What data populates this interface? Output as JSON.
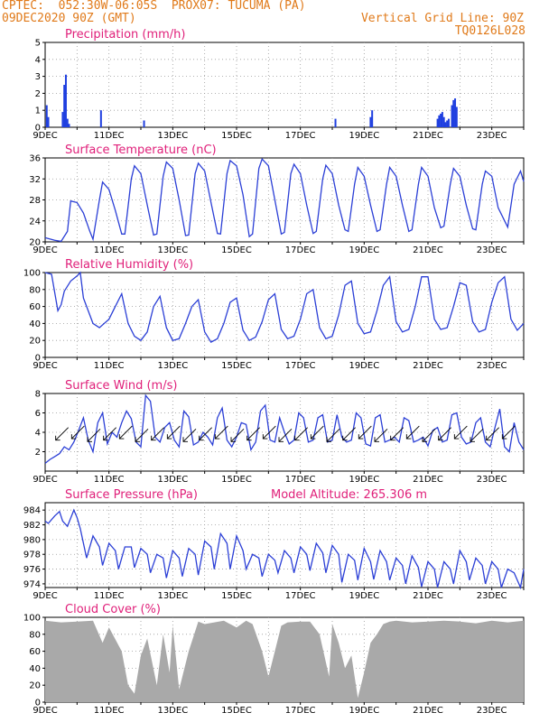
{
  "header": {
    "line1": "CPTEC:  052:30W-06:05S  PROX07: TUCUMA (PA)",
    "line2_left": "09DEC2020 90Z (GMT)",
    "line2_right": "Vertical Grid Line: 90Z",
    "line3_right": "TQ0126L028",
    "model_altitude": "Model Altitude: 265.306 m"
  },
  "colors": {
    "line": "#2b3fd6",
    "bar": "#1f3fe0",
    "cloud": "#a9a9a9",
    "title": "#e0207a",
    "header": "#e07a1a"
  },
  "x_ticks": [
    "9DEC",
    "11DEC",
    "13DEC",
    "15DEC",
    "17DEC",
    "19DEC",
    "21DEC",
    "23DEC"
  ],
  "chart_data": [
    {
      "type": "bar",
      "title": "Precipitation (mm/h)",
      "ylim": [
        0,
        5
      ],
      "yticks": [
        0,
        1,
        2,
        3,
        4,
        5
      ],
      "x_days": [
        0.05,
        0.1,
        0.55,
        0.6,
        0.65,
        0.7,
        0.75,
        1.75,
        3.1,
        9.1,
        10.2,
        10.25,
        12.3,
        12.35,
        12.4,
        12.45,
        12.5,
        12.55,
        12.6,
        12.65,
        12.75,
        12.8,
        12.85,
        12.9
      ],
      "values": [
        1.3,
        0.6,
        0.9,
        2.5,
        3.1,
        0.5,
        0.2,
        1.0,
        0.4,
        0.5,
        0.6,
        1.0,
        0.5,
        0.7,
        0.8,
        0.9,
        0.6,
        0.3,
        0.4,
        0.5,
        1.3,
        1.6,
        1.7,
        1.2
      ]
    },
    {
      "type": "line",
      "title": "Surface Temperature (nC)",
      "ylim": [
        20,
        36
      ],
      "yticks": [
        20,
        24,
        28,
        32,
        36
      ],
      "x_days": [
        0,
        0.3,
        0.5,
        0.7,
        0.8,
        1.0,
        1.2,
        1.4,
        1.5,
        1.7,
        1.8,
        2.0,
        2.2,
        2.4,
        2.5,
        2.7,
        2.8,
        3.0,
        3.2,
        3.4,
        3.5,
        3.7,
        3.8,
        4.0,
        4.2,
        4.4,
        4.5,
        4.7,
        4.8,
        5.0,
        5.2,
        5.4,
        5.5,
        5.7,
        5.8,
        6.0,
        6.2,
        6.4,
        6.5,
        6.7,
        6.8,
        7.0,
        7.2,
        7.4,
        7.5,
        7.7,
        7.8,
        8.0,
        8.2,
        8.4,
        8.5,
        8.7,
        8.8,
        9.0,
        9.2,
        9.4,
        9.5,
        9.7,
        9.8,
        10.0,
        10.2,
        10.4,
        10.5,
        10.7,
        10.8,
        11.0,
        11.2,
        11.4,
        11.5,
        11.7,
        11.8,
        12.0,
        12.2,
        12.4,
        12.5,
        12.7,
        12.8,
        13.0,
        13.2,
        13.4,
        13.5,
        13.7,
        13.8,
        14.0,
        14.2,
        14.5,
        14.7,
        14.9,
        15.0
      ],
      "values": [
        20.8,
        20.3,
        20.1,
        22,
        27.8,
        27.5,
        25.5,
        22,
        20.5,
        28,
        31.4,
        30,
        26,
        21.5,
        21.5,
        32,
        34.5,
        33,
        27,
        21.3,
        21.5,
        32.5,
        35.2,
        34,
        28,
        21.2,
        21.3,
        33,
        35,
        33.5,
        27.5,
        21.6,
        21.5,
        33,
        35.5,
        34.5,
        29,
        21,
        21.5,
        34,
        35.8,
        34.5,
        28,
        21.5,
        21.8,
        33,
        34.8,
        33,
        27,
        21.6,
        22,
        32,
        34.6,
        33,
        27,
        22.3,
        22,
        31,
        34.2,
        32.5,
        27,
        22,
        22.3,
        31,
        34.2,
        32.5,
        27,
        22,
        22.3,
        31,
        34.2,
        32.5,
        26.5,
        22.7,
        23,
        31,
        34,
        32.5,
        27,
        22.5,
        22.3,
        31,
        33.5,
        32.5,
        26.5,
        22.8,
        31,
        33.5,
        31.5
      ]
    },
    {
      "type": "line",
      "title": "Relative Humidity (%)",
      "ylim": [
        0,
        100
      ],
      "yticks": [
        0,
        20,
        40,
        60,
        80,
        100
      ],
      "x_days": [
        0,
        0.2,
        0.4,
        0.5,
        0.6,
        0.8,
        1.0,
        1.1,
        1.2,
        1.5,
        1.7,
        2.0,
        2.2,
        2.4,
        2.6,
        2.8,
        3.0,
        3.2,
        3.4,
        3.6,
        3.8,
        4.0,
        4.2,
        4.4,
        4.6,
        4.8,
        5.0,
        5.2,
        5.4,
        5.6,
        5.8,
        6.0,
        6.2,
        6.4,
        6.6,
        6.8,
        7.0,
        7.2,
        7.4,
        7.6,
        7.8,
        8.0,
        8.2,
        8.4,
        8.6,
        8.8,
        9.0,
        9.2,
        9.4,
        9.6,
        9.8,
        10.0,
        10.2,
        10.4,
        10.6,
        10.8,
        11.0,
        11.2,
        11.4,
        11.6,
        11.8,
        12.0,
        12.2,
        12.4,
        12.6,
        12.8,
        13.0,
        13.2,
        13.4,
        13.6,
        13.8,
        14.0,
        14.2,
        14.4,
        14.6,
        14.8,
        15.0
      ],
      "values": [
        100,
        98,
        55,
        62,
        78,
        90,
        96,
        100,
        70,
        40,
        35,
        45,
        60,
        75,
        40,
        25,
        20,
        30,
        60,
        72,
        35,
        20,
        22,
        40,
        60,
        68,
        30,
        18,
        22,
        40,
        65,
        70,
        32,
        20,
        24,
        42,
        68,
        75,
        33,
        22,
        25,
        45,
        75,
        80,
        35,
        22,
        25,
        50,
        85,
        90,
        40,
        28,
        30,
        55,
        85,
        95,
        42,
        30,
        33,
        60,
        95,
        95,
        45,
        33,
        35,
        60,
        88,
        85,
        42,
        30,
        33,
        65,
        88,
        95,
        45,
        32,
        40
      ]
    },
    {
      "type": "line",
      "title": "Surface Wind (m/s)",
      "ylim": [
        0,
        8
      ],
      "yticks": [
        2,
        4,
        6,
        8
      ],
      "x_days": [
        0,
        0.15,
        0.3,
        0.45,
        0.6,
        0.75,
        0.9,
        1.05,
        1.2,
        1.35,
        1.5,
        1.65,
        1.8,
        1.95,
        2.1,
        2.25,
        2.4,
        2.55,
        2.7,
        2.85,
        3.0,
        3.15,
        3.3,
        3.45,
        3.6,
        3.75,
        3.9,
        4.05,
        4.2,
        4.35,
        4.5,
        4.65,
        4.8,
        4.95,
        5.1,
        5.25,
        5.4,
        5.55,
        5.7,
        5.85,
        6.0,
        6.15,
        6.3,
        6.45,
        6.6,
        6.75,
        6.9,
        7.05,
        7.2,
        7.35,
        7.5,
        7.65,
        7.8,
        7.95,
        8.1,
        8.25,
        8.4,
        8.55,
        8.7,
        8.85,
        9.0,
        9.15,
        9.3,
        9.45,
        9.6,
        9.75,
        9.9,
        10.05,
        10.2,
        10.35,
        10.5,
        10.65,
        10.8,
        10.95,
        11.1,
        11.25,
        11.4,
        11.55,
        11.7,
        11.85,
        12.0,
        12.15,
        12.3,
        12.45,
        12.6,
        12.75,
        12.9,
        13.05,
        13.2,
        13.35,
        13.5,
        13.65,
        13.8,
        13.95,
        14.1,
        14.25,
        14.4,
        14.55,
        14.7,
        14.85,
        15.0
      ],
      "values": [
        0.8,
        1.2,
        1.5,
        1.8,
        2.5,
        2.2,
        3.0,
        4.2,
        5.5,
        3.2,
        2.0,
        5.0,
        6.0,
        2.8,
        4.0,
        3.5,
        5.0,
        6.2,
        5.4,
        3.0,
        2.5,
        7.8,
        7.2,
        3.5,
        3.0,
        4.5,
        5.0,
        3.2,
        2.5,
        6.2,
        5.6,
        2.7,
        3.0,
        4.0,
        3.5,
        2.7,
        5.5,
        6.5,
        3.2,
        2.5,
        3.5,
        5.0,
        4.8,
        2.2,
        3.0,
        6.2,
        6.8,
        3.2,
        3.0,
        5.5,
        4.0,
        2.8,
        3.2,
        6.0,
        5.5,
        3.0,
        3.2,
        5.5,
        5.8,
        3.0,
        3.2,
        5.8,
        3.5,
        3.0,
        3.2,
        6.0,
        5.5,
        2.8,
        2.6,
        5.5,
        5.8,
        3.0,
        3.2,
        3.5,
        3.0,
        5.5,
        5.2,
        3.0,
        3.2,
        3.5,
        2.6,
        4.2,
        4.5,
        3.0,
        3.2,
        5.8,
        6.0,
        3.5,
        2.8,
        3.0,
        5.0,
        5.5,
        3.0,
        2.5,
        4.5,
        6.4,
        2.5,
        2.0,
        5.0,
        3.0,
        2.2
      ]
    },
    {
      "type": "line",
      "title": "Surface Pressure (hPa)",
      "ylim": [
        973.5,
        985
      ],
      "yticks": [
        974,
        976,
        978,
        980,
        982,
        984
      ],
      "x_days": [
        0,
        0.1,
        0.3,
        0.45,
        0.55,
        0.7,
        0.9,
        1.0,
        1.1,
        1.3,
        1.5,
        1.7,
        1.8,
        2.0,
        2.2,
        2.3,
        2.5,
        2.7,
        2.8,
        3.0,
        3.2,
        3.3,
        3.5,
        3.7,
        3.8,
        4.0,
        4.2,
        4.3,
        4.5,
        4.7,
        4.8,
        5.0,
        5.2,
        5.3,
        5.5,
        5.7,
        5.8,
        6.0,
        6.2,
        6.3,
        6.5,
        6.7,
        6.8,
        7.0,
        7.2,
        7.3,
        7.5,
        7.7,
        7.8,
        8.0,
        8.2,
        8.3,
        8.5,
        8.7,
        8.8,
        9.0,
        9.2,
        9.3,
        9.5,
        9.7,
        9.8,
        10.0,
        10.2,
        10.3,
        10.5,
        10.7,
        10.8,
        11.0,
        11.2,
        11.3,
        11.5,
        11.7,
        11.8,
        12.0,
        12.2,
        12.3,
        12.5,
        12.7,
        12.8,
        13.0,
        13.2,
        13.3,
        13.5,
        13.7,
        13.8,
        14.0,
        14.2,
        14.3,
        14.5,
        14.7,
        14.9,
        15.0
      ],
      "values": [
        982.5,
        982.2,
        983.2,
        983.8,
        982.5,
        981.8,
        984,
        983,
        981.5,
        977.5,
        980.5,
        979,
        976.5,
        979.5,
        978.5,
        976,
        979,
        979,
        976.2,
        978.8,
        978,
        975.5,
        978,
        977.5,
        974.8,
        978.5,
        977.5,
        975,
        978.8,
        978,
        975.2,
        979.8,
        979,
        976,
        980.8,
        979.5,
        976,
        980.5,
        978.5,
        976,
        978,
        977.5,
        975,
        978,
        977.2,
        975.5,
        978.5,
        977.5,
        975.5,
        979,
        978,
        975.8,
        979.5,
        978.2,
        975.5,
        979.2,
        978,
        974.2,
        978,
        977.2,
        974.5,
        978.8,
        977,
        974.6,
        978.5,
        977,
        974.5,
        977.5,
        976.5,
        974,
        977.8,
        976.2,
        973.6,
        977,
        976,
        973.5,
        977,
        976,
        974,
        978.5,
        977,
        974.5,
        977.5,
        976.5,
        974,
        977,
        976,
        973.5,
        976,
        975.5,
        973.5,
        976
      ]
    },
    {
      "type": "area",
      "title": "Cloud Cover (%)",
      "ylim": [
        0,
        100
      ],
      "yticks": [
        0,
        20,
        40,
        60,
        80,
        100
      ],
      "x_days": [
        0,
        0.5,
        1.0,
        1.5,
        1.8,
        2.0,
        2.4,
        2.6,
        2.8,
        3.0,
        3.2,
        3.5,
        3.7,
        3.9,
        4.0,
        4.2,
        4.5,
        4.8,
        5.0,
        5.3,
        5.6,
        6.0,
        6.3,
        6.5,
        6.8,
        7.0,
        7.4,
        7.6,
        8.0,
        8.3,
        8.6,
        8.9,
        9.0,
        9.2,
        9.4,
        9.6,
        9.8,
        10.0,
        10.2,
        10.4,
        10.6,
        10.8,
        11.0,
        11.5,
        12.0,
        12.5,
        13.0,
        13.5,
        14.0,
        14.5,
        15.0
      ],
      "values": [
        96,
        94,
        95,
        96,
        70,
        88,
        60,
        20,
        10,
        55,
        75,
        20,
        80,
        35,
        90,
        15,
        60,
        95,
        92,
        94,
        96,
        88,
        96,
        92,
        60,
        30,
        90,
        94,
        95,
        95,
        80,
        30,
        92,
        70,
        40,
        55,
        5,
        35,
        70,
        80,
        92,
        95,
        96,
        94,
        95,
        96,
        95,
        93,
        96,
        94,
        96
      ]
    }
  ]
}
